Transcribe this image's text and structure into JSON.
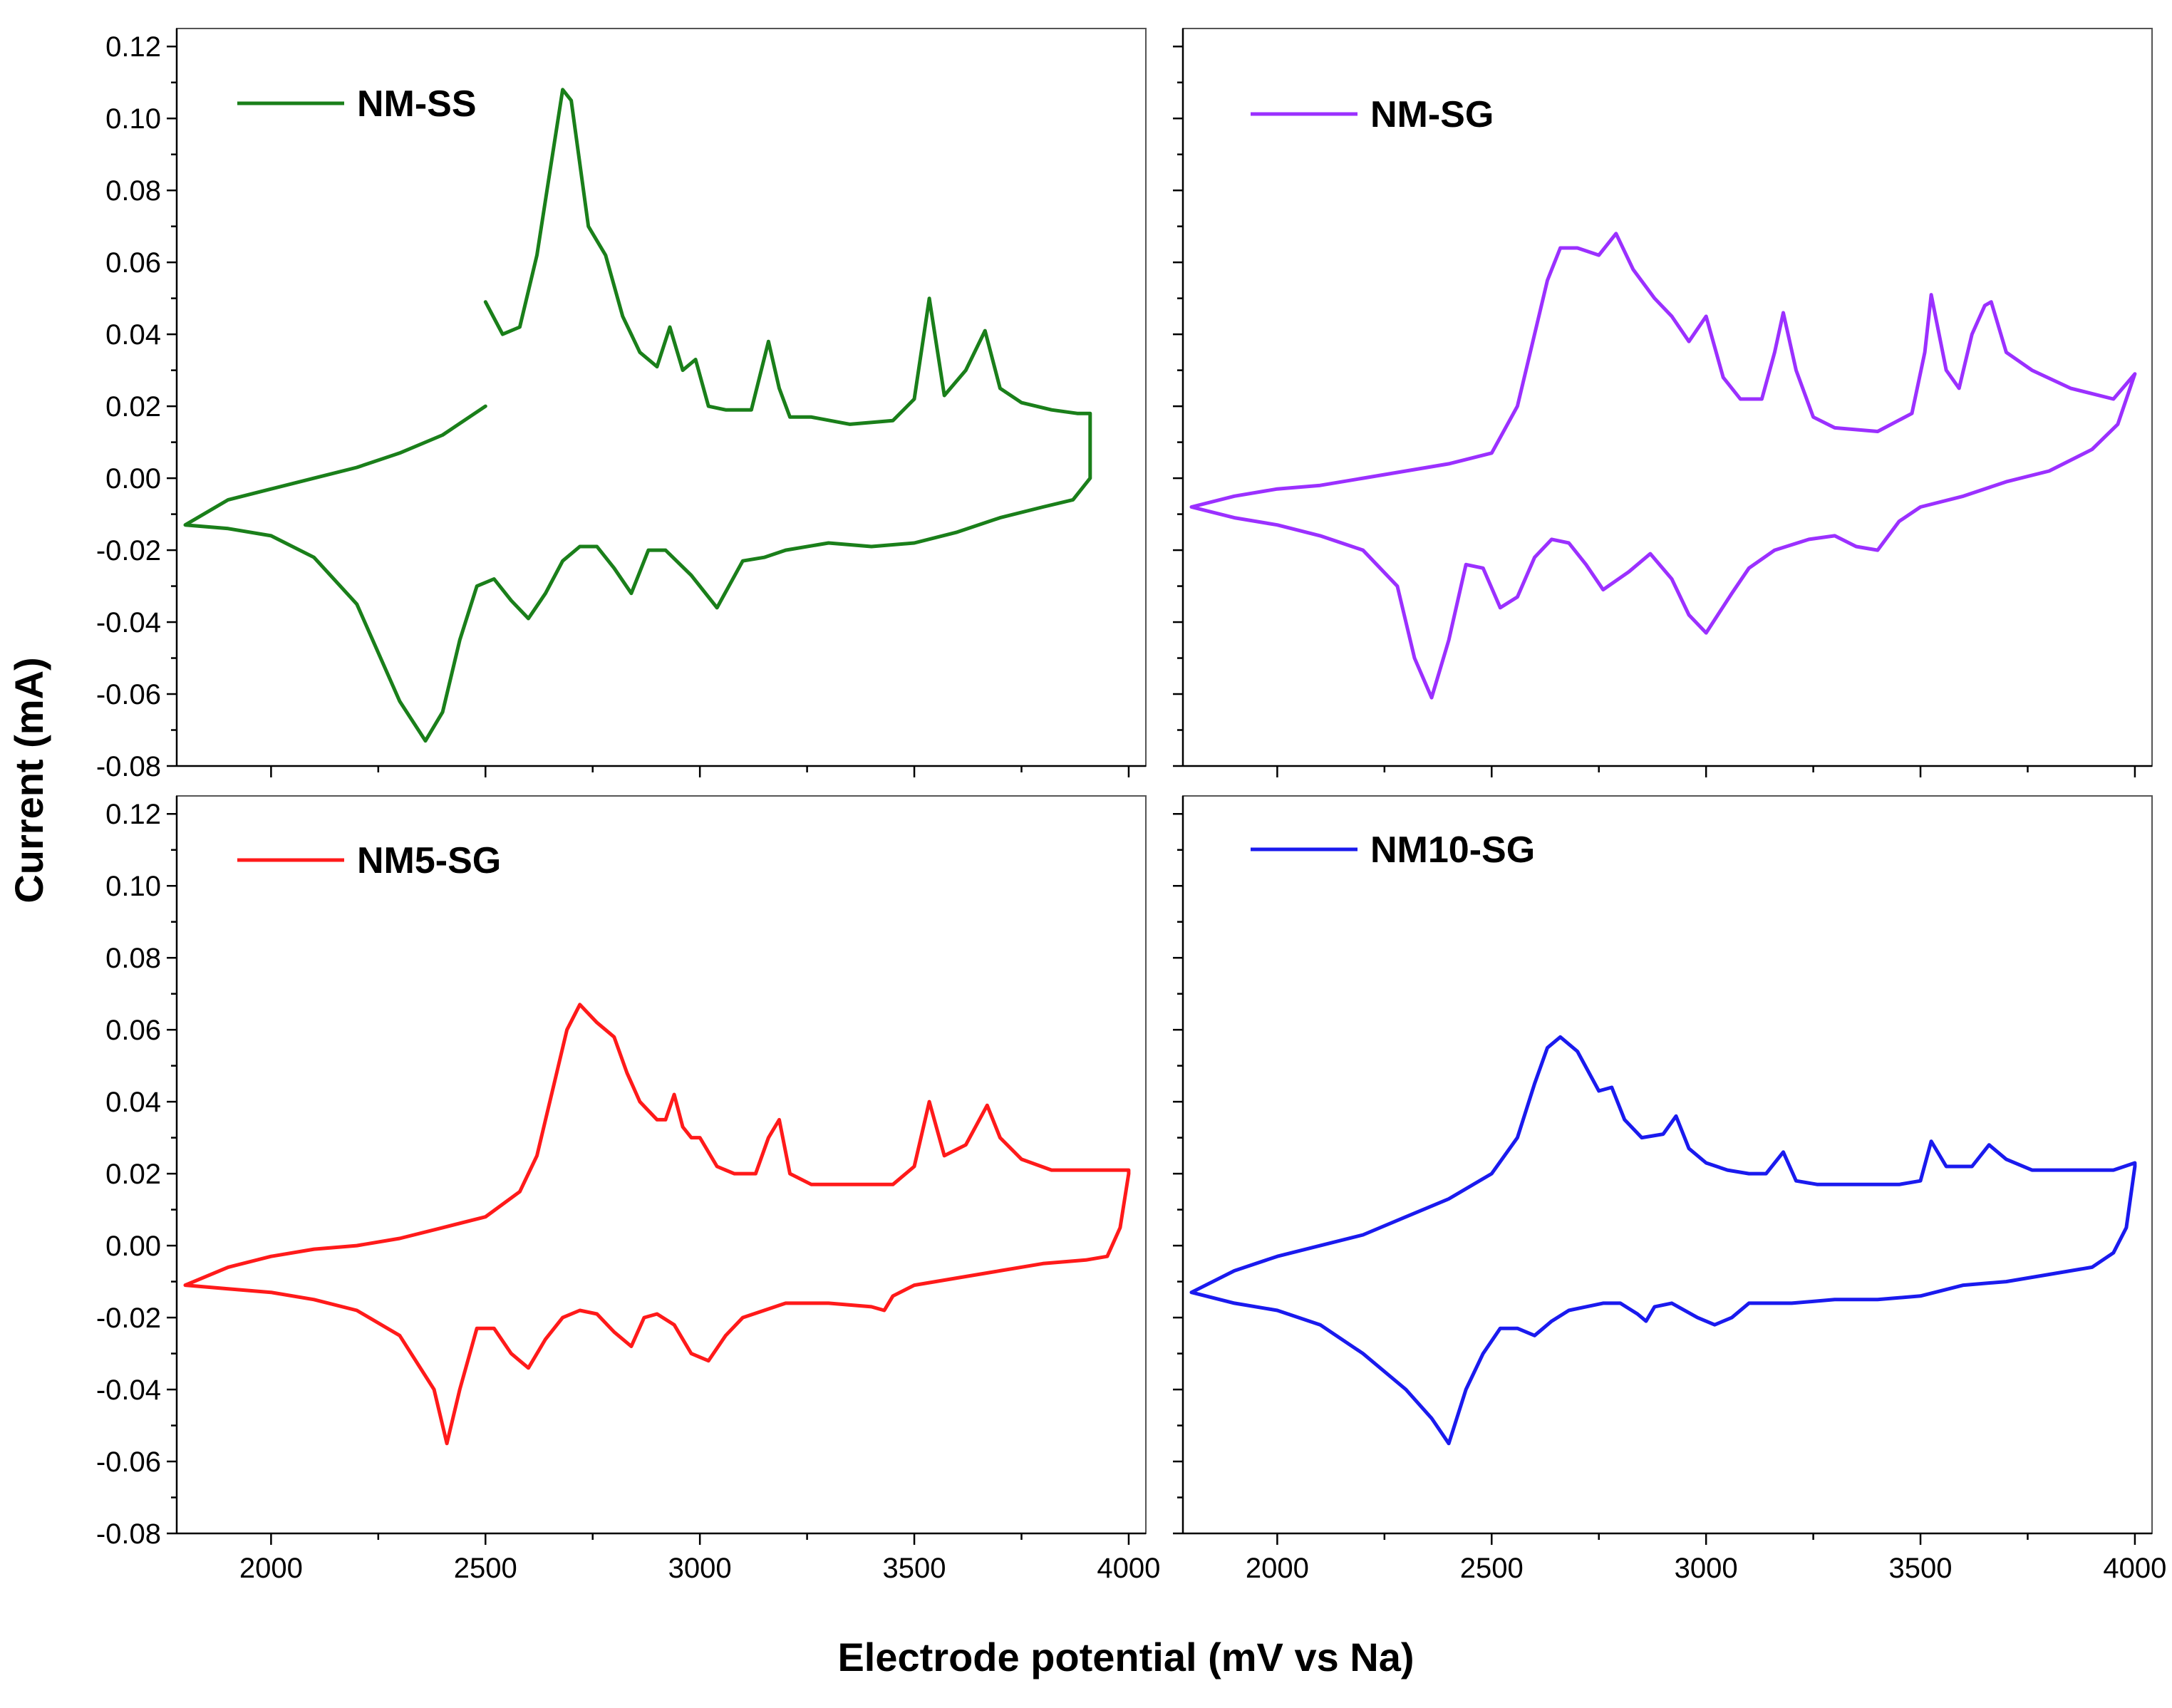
{
  "chart_data": {
    "type": "line",
    "xlabel": "Electrode potential (mV vs Na)",
    "ylabel": "Current (mA)",
    "xlim": [
      1780,
      4040
    ],
    "ylim": [
      -0.08,
      0.125
    ],
    "xticks": [
      2000,
      2500,
      3000,
      3500,
      4000
    ],
    "xtick_labels": [
      "2000",
      "2500",
      "3000",
      "3500",
      "4000"
    ],
    "yticks": [
      -0.08,
      -0.06,
      -0.04,
      -0.02,
      0.0,
      0.02,
      0.04,
      0.06,
      0.08,
      0.1,
      0.12
    ],
    "ytick_labels": [
      "-0.08",
      "-0.06",
      "-0.04",
      "-0.02",
      "0.00",
      "0.02",
      "0.04",
      "0.06",
      "0.08",
      "0.10",
      "0.12"
    ],
    "panels": [
      {
        "name": "NM-SS",
        "color": "#1a7f1a",
        "legend": "NM-SS",
        "x": [
          2500,
          2540,
          2580,
          2620,
          2650,
          2680,
          2700,
          2740,
          2780,
          2820,
          2860,
          2900,
          2930,
          2960,
          2990,
          3020,
          3060,
          3120,
          3160,
          3185,
          3210,
          3260,
          3350,
          3450,
          3500,
          3535,
          3570,
          3620,
          3665,
          3700,
          3750,
          3820,
          3880,
          3910,
          3910,
          3870,
          3800,
          3700,
          3600,
          3500,
          3400,
          3300,
          3200,
          3150,
          3100,
          3040,
          2980,
          2920,
          2880,
          2840,
          2800,
          2760,
          2720,
          2680,
          2640,
          2600,
          2560,
          2520,
          2480,
          2440,
          2400,
          2360,
          2300,
          2200,
          2100,
          2000,
          1900,
          1800,
          1900,
          2000,
          2100,
          2200,
          2300,
          2400,
          2500
        ],
        "y": [
          0.049,
          0.04,
          0.042,
          0.062,
          0.085,
          0.108,
          0.105,
          0.07,
          0.062,
          0.045,
          0.035,
          0.031,
          0.042,
          0.03,
          0.033,
          0.02,
          0.019,
          0.019,
          0.038,
          0.025,
          0.017,
          0.017,
          0.015,
          0.016,
          0.022,
          0.05,
          0.023,
          0.03,
          0.041,
          0.025,
          0.021,
          0.019,
          0.018,
          0.018,
          0.0,
          -0.006,
          -0.008,
          -0.011,
          -0.015,
          -0.018,
          -0.019,
          -0.018,
          -0.02,
          -0.022,
          -0.023,
          -0.036,
          -0.027,
          -0.02,
          -0.02,
          -0.032,
          -0.025,
          -0.019,
          -0.019,
          -0.023,
          -0.032,
          -0.039,
          -0.034,
          -0.028,
          -0.03,
          -0.045,
          -0.065,
          -0.073,
          -0.062,
          -0.035,
          -0.022,
          -0.016,
          -0.014,
          -0.013,
          -0.006,
          -0.003,
          0.0,
          0.003,
          0.007,
          0.012,
          0.02
        ]
      },
      {
        "name": "NM-SG",
        "color": "#9b30ff",
        "legend": "NM-SG",
        "x": [
          1800,
          1900,
          2000,
          2100,
          2200,
          2300,
          2400,
          2500,
          2560,
          2600,
          2630,
          2660,
          2700,
          2750,
          2790,
          2830,
          2880,
          2920,
          2960,
          3000,
          3040,
          3080,
          3130,
          3160,
          3180,
          3210,
          3250,
          3300,
          3400,
          3480,
          3510,
          3525,
          3560,
          3590,
          3620,
          3650,
          3665,
          3700,
          3760,
          3850,
          3950,
          4000,
          3960,
          3900,
          3800,
          3700,
          3600,
          3500,
          3450,
          3400,
          3350,
          3300,
          3240,
          3160,
          3100,
          3060,
          3000,
          2960,
          2920,
          2870,
          2820,
          2760,
          2720,
          2680,
          2640,
          2600,
          2560,
          2520,
          2480,
          2440,
          2400,
          2360,
          2320,
          2280,
          2200,
          2100,
          2000,
          1900,
          1800
        ],
        "y": [
          -0.008,
          -0.005,
          -0.003,
          -0.002,
          0.0,
          0.002,
          0.004,
          0.007,
          0.02,
          0.04,
          0.055,
          0.064,
          0.064,
          0.062,
          0.068,
          0.058,
          0.05,
          0.045,
          0.038,
          0.045,
          0.028,
          0.022,
          0.022,
          0.035,
          0.046,
          0.03,
          0.017,
          0.014,
          0.013,
          0.018,
          0.035,
          0.051,
          0.03,
          0.025,
          0.04,
          0.048,
          0.049,
          0.035,
          0.03,
          0.025,
          0.022,
          0.029,
          0.015,
          0.008,
          0.002,
          -0.001,
          -0.005,
          -0.008,
          -0.012,
          -0.02,
          -0.019,
          -0.016,
          -0.017,
          -0.02,
          -0.025,
          -0.032,
          -0.043,
          -0.038,
          -0.028,
          -0.021,
          -0.026,
          -0.031,
          -0.024,
          -0.018,
          -0.017,
          -0.022,
          -0.033,
          -0.036,
          -0.025,
          -0.024,
          -0.045,
          -0.061,
          -0.05,
          -0.03,
          -0.02,
          -0.016,
          -0.013,
          -0.011,
          -0.008
        ]
      },
      {
        "name": "NM5-SG",
        "color": "#ff1a1a",
        "legend": "NM5-SG",
        "x": [
          1800,
          1900,
          2000,
          2100,
          2200,
          2300,
          2400,
          2500,
          2580,
          2620,
          2660,
          2690,
          2720,
          2760,
          2800,
          2830,
          2860,
          2900,
          2920,
          2940,
          2960,
          2980,
          3000,
          3040,
          3080,
          3130,
          3160,
          3185,
          3210,
          3260,
          3350,
          3450,
          3500,
          3535,
          3570,
          3620,
          3670,
          3700,
          3750,
          3820,
          3900,
          4000,
          4000,
          3980,
          3950,
          3900,
          3800,
          3700,
          3600,
          3500,
          3450,
          3430,
          3400,
          3300,
          3200,
          3100,
          3060,
          3020,
          2980,
          2940,
          2900,
          2870,
          2840,
          2800,
          2760,
          2720,
          2680,
          2640,
          2600,
          2560,
          2520,
          2480,
          2440,
          2410,
          2380,
          2300,
          2200,
          2100,
          2000,
          1900,
          1800
        ],
        "y": [
          -0.011,
          -0.006,
          -0.003,
          -0.001,
          0.0,
          0.002,
          0.005,
          0.008,
          0.015,
          0.025,
          0.045,
          0.06,
          0.067,
          0.062,
          0.058,
          0.048,
          0.04,
          0.035,
          0.035,
          0.042,
          0.033,
          0.03,
          0.03,
          0.022,
          0.02,
          0.02,
          0.03,
          0.035,
          0.02,
          0.017,
          0.017,
          0.017,
          0.022,
          0.04,
          0.025,
          0.028,
          0.039,
          0.03,
          0.024,
          0.021,
          0.021,
          0.021,
          0.02,
          0.005,
          -0.003,
          -0.004,
          -0.005,
          -0.007,
          -0.009,
          -0.011,
          -0.014,
          -0.018,
          -0.017,
          -0.016,
          -0.016,
          -0.02,
          -0.025,
          -0.032,
          -0.03,
          -0.022,
          -0.019,
          -0.02,
          -0.028,
          -0.024,
          -0.019,
          -0.018,
          -0.02,
          -0.026,
          -0.034,
          -0.03,
          -0.023,
          -0.023,
          -0.04,
          -0.055,
          -0.04,
          -0.025,
          -0.018,
          -0.015,
          -0.013,
          -0.012,
          -0.011
        ]
      },
      {
        "name": "NM10-SG",
        "color": "#1a1aee",
        "legend": "NM10-SG",
        "x": [
          1800,
          1900,
          2000,
          2100,
          2200,
          2300,
          2400,
          2500,
          2560,
          2600,
          2630,
          2660,
          2700,
          2750,
          2780,
          2810,
          2850,
          2900,
          2930,
          2960,
          3000,
          3050,
          3100,
          3140,
          3180,
          3210,
          3260,
          3350,
          3450,
          3500,
          3525,
          3560,
          3620,
          3660,
          3700,
          3760,
          3850,
          3950,
          4000,
          4000,
          3980,
          3950,
          3900,
          3800,
          3700,
          3600,
          3500,
          3400,
          3300,
          3200,
          3100,
          3060,
          3020,
          2980,
          2920,
          2880,
          2860,
          2840,
          2800,
          2760,
          2720,
          2680,
          2640,
          2600,
          2560,
          2520,
          2480,
          2440,
          2400,
          2360,
          2300,
          2200,
          2100,
          2000,
          1900,
          1800
        ],
        "y": [
          -0.013,
          -0.007,
          -0.003,
          0.0,
          0.003,
          0.008,
          0.013,
          0.02,
          0.03,
          0.045,
          0.055,
          0.058,
          0.054,
          0.043,
          0.044,
          0.035,
          0.03,
          0.031,
          0.036,
          0.027,
          0.023,
          0.021,
          0.02,
          0.02,
          0.026,
          0.018,
          0.017,
          0.017,
          0.017,
          0.018,
          0.029,
          0.022,
          0.022,
          0.028,
          0.024,
          0.021,
          0.021,
          0.021,
          0.023,
          0.022,
          0.005,
          -0.002,
          -0.006,
          -0.008,
          -0.01,
          -0.011,
          -0.014,
          -0.015,
          -0.015,
          -0.016,
          -0.016,
          -0.02,
          -0.022,
          -0.02,
          -0.016,
          -0.017,
          -0.021,
          -0.019,
          -0.016,
          -0.016,
          -0.017,
          -0.018,
          -0.021,
          -0.025,
          -0.023,
          -0.023,
          -0.03,
          -0.04,
          -0.055,
          -0.048,
          -0.04,
          -0.03,
          -0.022,
          -0.018,
          -0.016,
          -0.013
        ]
      }
    ]
  }
}
